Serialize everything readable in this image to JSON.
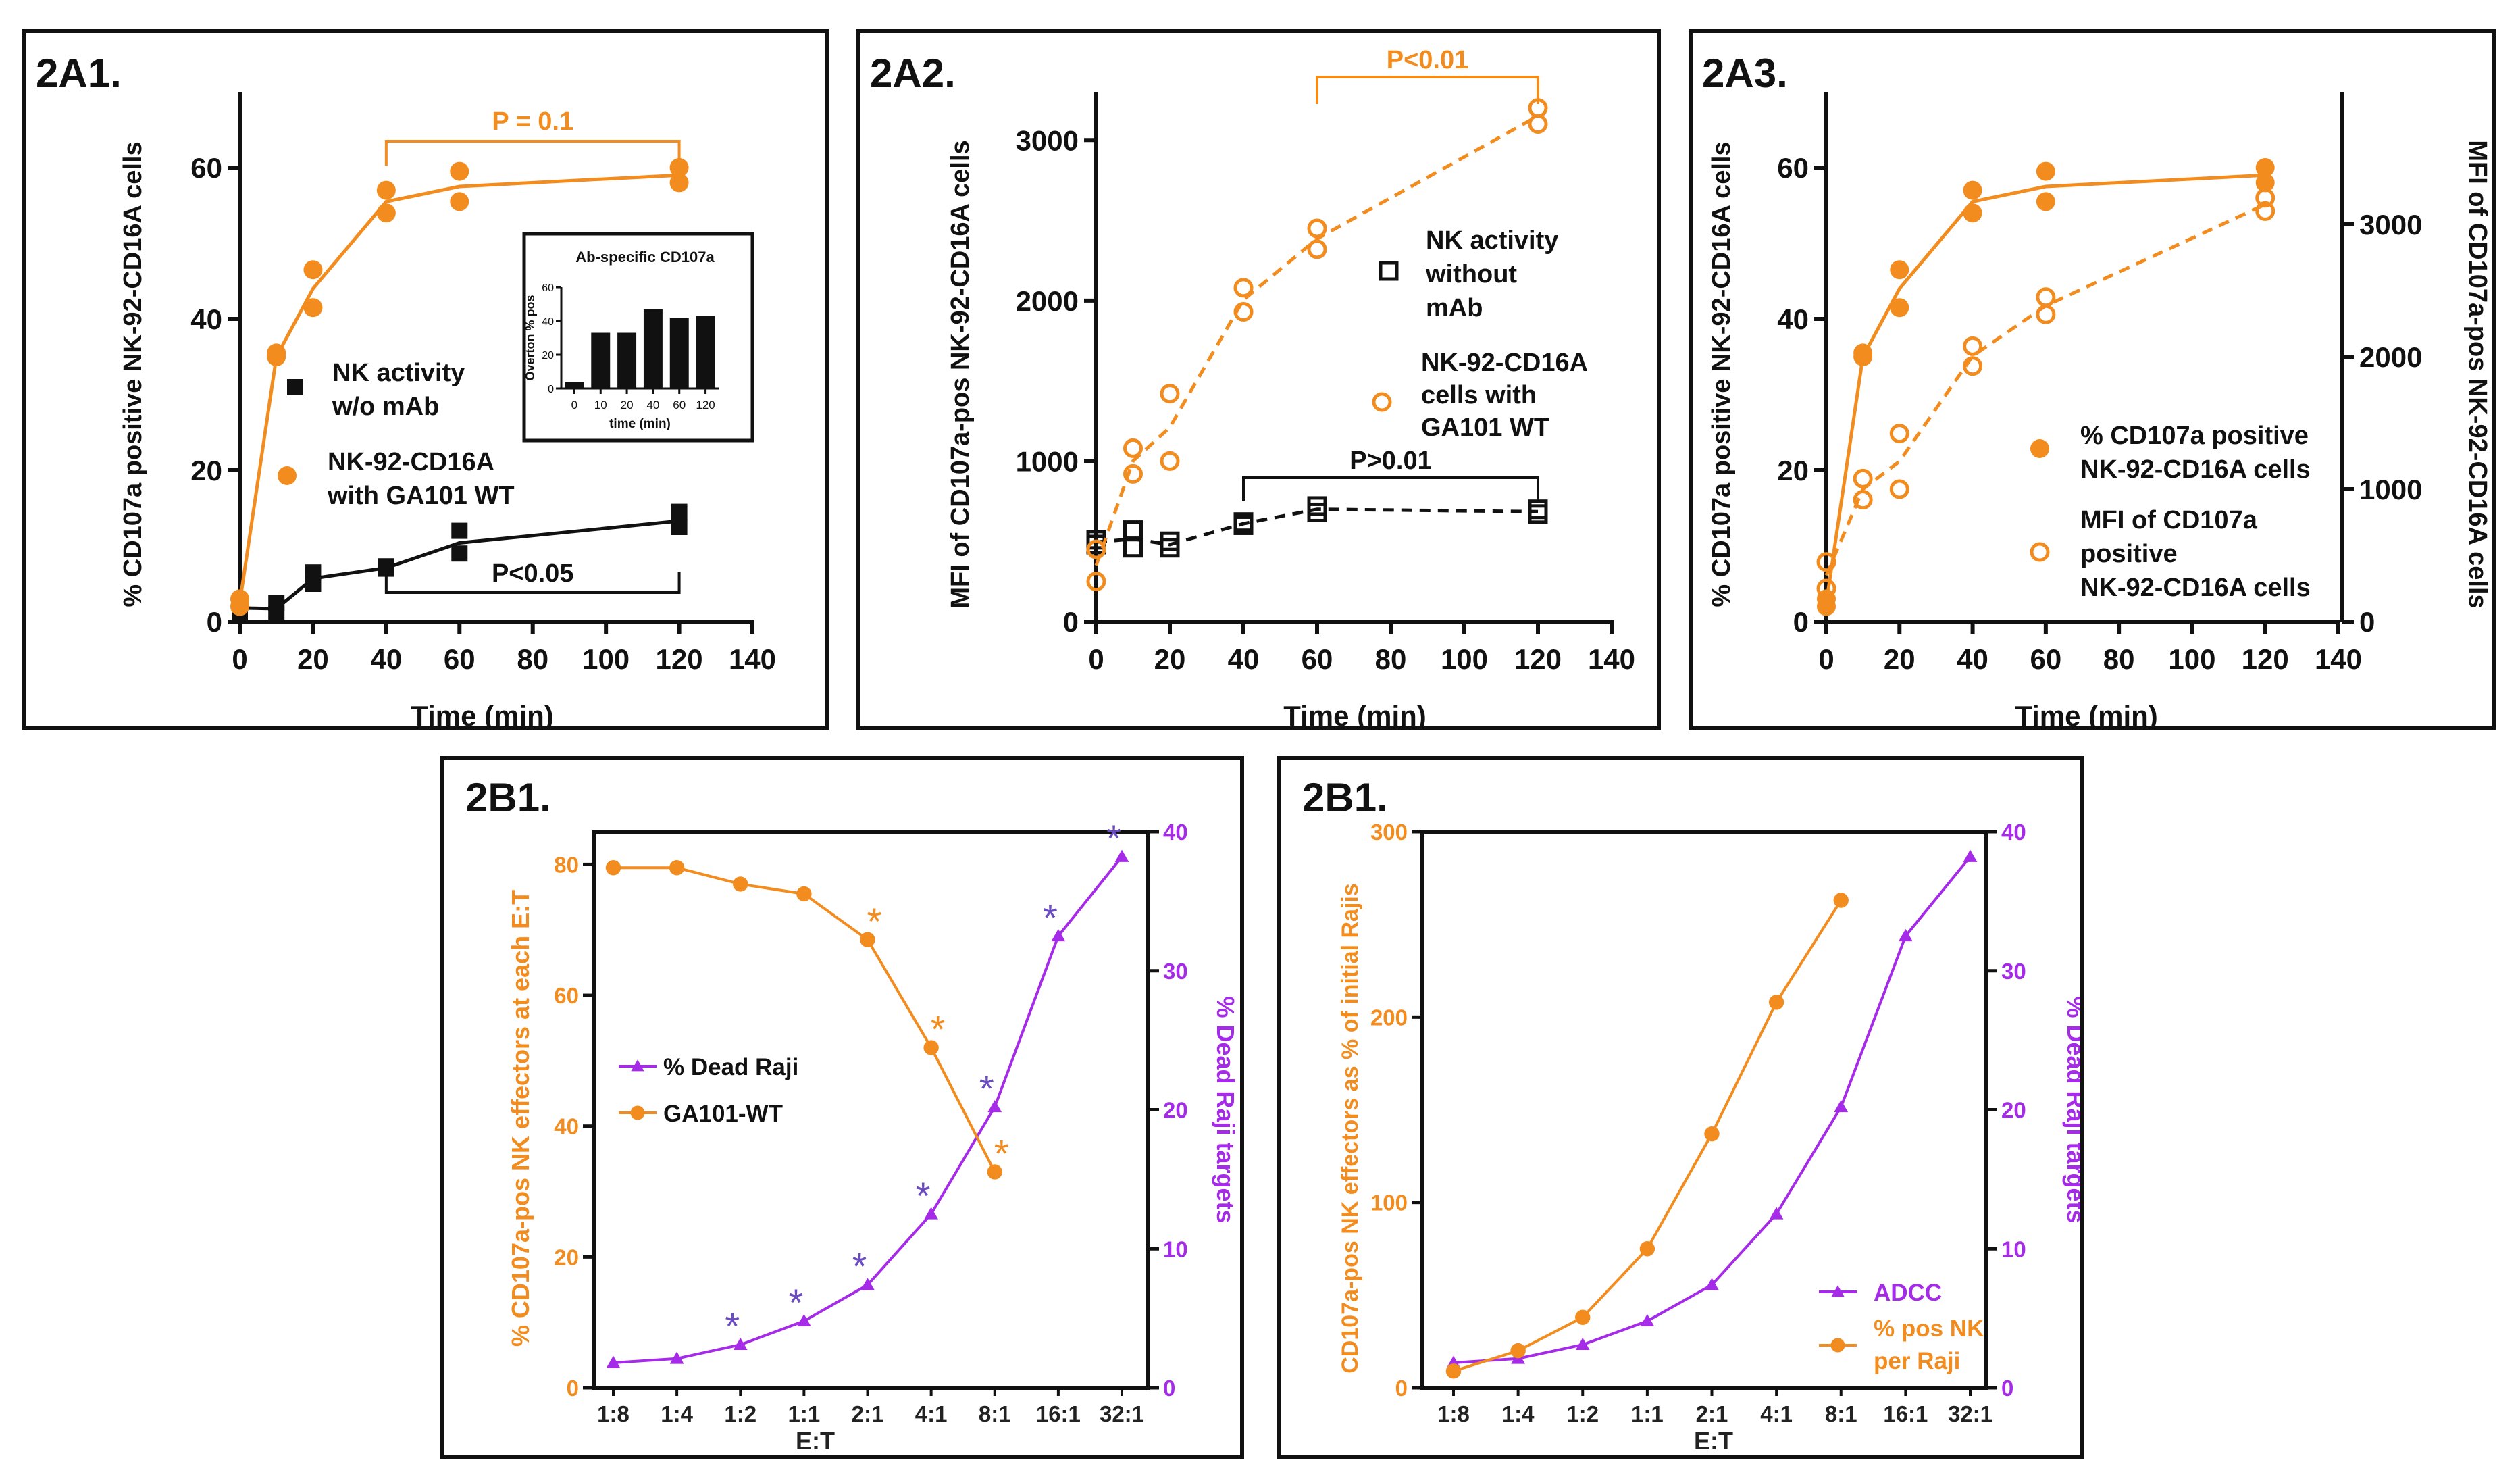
{
  "colors": {
    "orange": "#F28C1E",
    "purple": "#A52BE8",
    "asterisk_purple": "#6A4BC0",
    "black": "#111111"
  },
  "chart_data": [
    {
      "panel_label": "2A1.",
      "type": "scatter",
      "x_label": "Time (min)",
      "y_label": "% CD107a positive NK-92-CD16A cells",
      "xlim": [
        0,
        140
      ],
      "ylim": [
        0,
        70
      ],
      "x_ticks": [
        "0",
        "20",
        "40",
        "60",
        "80",
        "100",
        "120",
        "140"
      ],
      "y_ticks": [
        "0",
        "20",
        "40",
        "60"
      ],
      "series": [
        {
          "name": "NK activity w/o mAb",
          "legend_lines": [
            "NK activity",
            "w/o mAb"
          ],
          "marker": "filled-square",
          "color": "#111111",
          "line": "solid",
          "axis": "left",
          "x": [
            0,
            0,
            10,
            10,
            20,
            20,
            40,
            40,
            60,
            60,
            120,
            120
          ],
          "y": [
            1,
            2.5,
            1,
            2.5,
            5,
            6.5,
            7,
            7.3,
            9,
            12,
            12.5,
            14.5
          ],
          "fit": {
            "x": [
              0,
              10,
              20,
              40,
              60,
              120
            ],
            "y": [
              1.8,
              1.7,
              5.7,
              7.1,
              10.4,
              13.3
            ]
          }
        },
        {
          "name": "NK-92-CD16A with GA101 WT",
          "legend_lines": [
            "NK-92-CD16A",
            "with GA101 WT"
          ],
          "marker": "filled-circle",
          "color": "#F28C1E",
          "line": "solid",
          "axis": "left",
          "x": [
            0,
            0,
            10,
            10,
            20,
            20,
            40,
            40,
            60,
            60,
            120,
            120
          ],
          "y": [
            2,
            3,
            35,
            35.5,
            46.5,
            41.5,
            57,
            54,
            59.5,
            55.5,
            60,
            58
          ],
          "fit": {
            "x": [
              0,
              10,
              20,
              40,
              60,
              120
            ],
            "y": [
              2.5,
              35,
              44,
              55.5,
              57.5,
              59
            ]
          }
        }
      ],
      "brackets": [
        {
          "text": "P = 0.1",
          "x_from": 40,
          "x_to": 120,
          "color": "#F28C1E"
        },
        {
          "text": "P<0.05",
          "x_from": 40,
          "x_to": 120,
          "color": "#111111"
        }
      ],
      "inset": {
        "type": "bar",
        "title": "Ab-specific CD107a",
        "x_label": "time (min)",
        "y_label": "Overton % pos",
        "categories": [
          "0",
          "10",
          "20",
          "40",
          "60",
          "120"
        ],
        "values": [
          4,
          33,
          33,
          47,
          42,
          43
        ],
        "ylim": [
          0,
          60
        ],
        "y_ticks": [
          "0",
          "20",
          "40",
          "60"
        ]
      }
    },
    {
      "panel_label": "2A2.",
      "type": "scatter",
      "x_label": "Time (min)",
      "y_label": "MFI of CD107a-pos NK-92-CD16A cells",
      "xlim": [
        0,
        140
      ],
      "ylim": [
        0,
        3300
      ],
      "x_ticks": [
        "0",
        "20",
        "40",
        "60",
        "80",
        "100",
        "120",
        "140"
      ],
      "y_ticks": [
        "0",
        "1000",
        "2000",
        "3000"
      ],
      "series": [
        {
          "name": "NK activity without mAb",
          "legend_lines": [
            "NK activity",
            "without",
            "mAb"
          ],
          "marker": "open-square",
          "color": "#111111",
          "line": "dashed",
          "axis": "left",
          "x": [
            0,
            0,
            10,
            10,
            20,
            20,
            40,
            40,
            60,
            60,
            120,
            120
          ],
          "y": [
            480,
            510,
            570,
            460,
            500,
            460,
            600,
            620,
            720,
            680,
            700,
            670
          ],
          "fit": {
            "x": [
              0,
              10,
              20,
              40,
              60,
              120
            ],
            "y": [
              495,
              515,
              480,
              610,
              700,
              685
            ]
          }
        },
        {
          "name": "NK-92-CD16A cells with GA101 WT",
          "legend_lines": [
            "NK-92-CD16A",
            "cells with",
            "GA101 WT"
          ],
          "marker": "open-circle",
          "color": "#F28C1E",
          "line": "dashed",
          "axis": "left",
          "x": [
            0,
            0,
            10,
            10,
            20,
            20,
            40,
            40,
            60,
            60,
            120,
            120
          ],
          "y": [
            250,
            450,
            1080,
            920,
            1420,
            1000,
            2080,
            1930,
            2450,
            2320,
            3200,
            3100
          ],
          "fit": {
            "x": [
              0,
              10,
              20,
              40,
              60,
              120
            ],
            "y": [
              350,
              1000,
              1210,
              2005,
              2385,
              3150
            ]
          }
        }
      ],
      "brackets": [
        {
          "text": "P<0.01",
          "x_from": 60,
          "x_to": 120,
          "color": "#F28C1E"
        },
        {
          "text": "P>0.01",
          "x_from": 40,
          "x_to": 120,
          "color": "#111111"
        }
      ]
    },
    {
      "panel_label": "2A3.",
      "type": "scatter",
      "x_label": "Time (min)",
      "y_label": "% CD107a positive NK-92-CD16A cells",
      "y2_label": "MFI of CD107a-pos NK-92-CD16A cells",
      "xlim": [
        0,
        140
      ],
      "ylim": [
        0,
        70
      ],
      "y2lim": [
        0,
        4000
      ],
      "x_ticks": [
        "0",
        "20",
        "40",
        "60",
        "80",
        "100",
        "120",
        "140"
      ],
      "y_ticks": [
        "0",
        "20",
        "40",
        "60"
      ],
      "y2_ticks": [
        "0",
        "1000",
        "2000",
        "3000"
      ],
      "series": [
        {
          "name": "% CD107a positive NK-92-CD16A cells",
          "legend_lines": [
            "% CD107a positive",
            "NK-92-CD16A cells"
          ],
          "marker": "filled-circle",
          "color": "#F28C1E",
          "line": "solid",
          "axis": "left",
          "x": [
            0,
            0,
            10,
            10,
            20,
            20,
            40,
            40,
            60,
            60,
            120,
            120
          ],
          "y": [
            2,
            3,
            35,
            35.5,
            46.5,
            41.5,
            57,
            54,
            59.5,
            55.5,
            60,
            58
          ],
          "fit": {
            "x": [
              0,
              10,
              20,
              40,
              60,
              120
            ],
            "y": [
              2.5,
              35,
              44,
              55.5,
              57.5,
              59
            ]
          }
        },
        {
          "name": "MFI of CD107a positive NK-92-CD16A cells",
          "legend_lines": [
            "MFI of CD107a",
            "positive",
            "NK-92-CD16A cells"
          ],
          "marker": "open-circle",
          "color": "#F28C1E",
          "line": "dashed",
          "axis": "right",
          "x": [
            0,
            0,
            10,
            10,
            20,
            20,
            40,
            40,
            60,
            60,
            120,
            120
          ],
          "y": [
            250,
            450,
            1080,
            920,
            1420,
            1000,
            2080,
            1930,
            2450,
            2320,
            3200,
            3100
          ],
          "fit": {
            "x": [
              0,
              10,
              20,
              40,
              60,
              120
            ],
            "y": [
              350,
              1000,
              1210,
              2005,
              2385,
              3150
            ]
          }
        }
      ]
    },
    {
      "panel_label": "2B1.",
      "type": "line",
      "x_label": "E:T",
      "y_label": "% CD107a-pos NK effectors at each E:T",
      "y2_label": "% Dead Raji targets",
      "categories": [
        "1:8",
        "1:4",
        "1:2",
        "1:1",
        "2:1",
        "4:1",
        "8:1",
        "16:1",
        "32:1"
      ],
      "ylim": [
        0,
        85
      ],
      "y2lim": [
        0,
        40
      ],
      "y_ticks": [
        "0",
        "20",
        "40",
        "60",
        "80"
      ],
      "y2_ticks": [
        "0",
        "10",
        "20",
        "30",
        "40"
      ],
      "series": [
        {
          "name": "% Dead Raji",
          "marker": "filled-triangle",
          "color": "#A52BE8",
          "axis": "right",
          "values": [
            1.8,
            2.1,
            3.1,
            4.8,
            7.4,
            12.5,
            20.2,
            32.5,
            38.2
          ],
          "asterisks": [
            "1:2",
            "1:1",
            "2:1",
            "4:1",
            "8:1",
            "16:1",
            "32:1"
          ],
          "asterisk_color": "#6A4BC0"
        },
        {
          "name": "GA101-WT",
          "marker": "filled-circle",
          "color": "#F28C1E",
          "axis": "left",
          "values": [
            79.5,
            79.5,
            77,
            75.5,
            68.5,
            52,
            33,
            null,
            null
          ],
          "asterisks": [
            "2:1",
            "4:1",
            "8:1"
          ],
          "asterisk_color": "#F28C1E"
        }
      ],
      "asterisk_text": "*"
    },
    {
      "panel_label": "2B1.",
      "type": "line",
      "x_label": "E:T",
      "y_label": "CD107a-pos NK effectors as % of initial Rajis",
      "y2_label": "% Dead Raji targets",
      "categories": [
        "1:8",
        "1:4",
        "1:2",
        "1:1",
        "2:1",
        "4:1",
        "8:1",
        "16:1",
        "32:1"
      ],
      "ylim": [
        0,
        300
      ],
      "y2lim": [
        0,
        40
      ],
      "y_ticks": [
        "0",
        "100",
        "200",
        "300"
      ],
      "y2_ticks": [
        "0",
        "10",
        "20",
        "30",
        "40"
      ],
      "series": [
        {
          "name": "ADCC",
          "legend_lines": [
            "ADCC"
          ],
          "marker": "filled-triangle",
          "color": "#A52BE8",
          "axis": "right",
          "values": [
            1.8,
            2.1,
            3.1,
            4.8,
            7.4,
            12.5,
            20.2,
            32.5,
            38.2
          ]
        },
        {
          "name": "% pos NK per Raji",
          "legend_lines": [
            "% pos NK",
            "per Raji"
          ],
          "marker": "filled-circle",
          "color": "#F28C1E",
          "axis": "left",
          "values": [
            9,
            20,
            38,
            75,
            137,
            208,
            263,
            null,
            null
          ]
        }
      ]
    }
  ]
}
